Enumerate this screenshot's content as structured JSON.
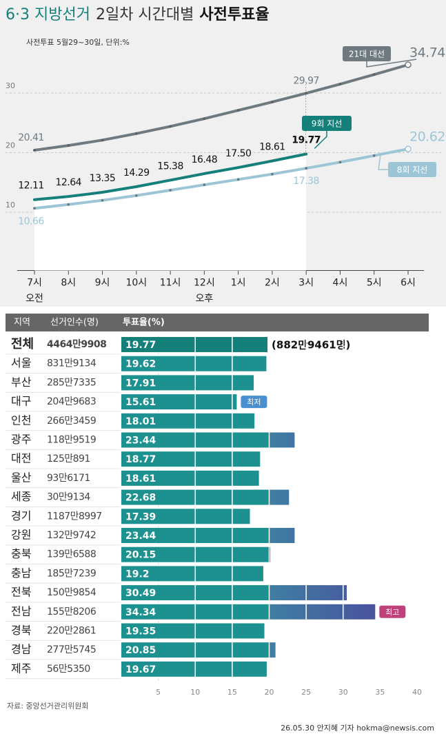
{
  "title": [
    "6·3 지방선거",
    "2일차 시간대별",
    "사전투표율"
  ],
  "subtitle": "사전투표 5월29~30일, 단위:%",
  "source": "자료: 중앙선거관리위원회",
  "byline": "26.05.30 안지혜 기자 hokma@newsis.com",
  "chart_data": [
    {
      "type": "line",
      "categories": [
        "7시",
        "8시",
        "9시",
        "10시",
        "11시",
        "12시",
        "1시",
        "2시",
        "3시",
        "4시",
        "5시",
        "6시"
      ],
      "x_sublabels": [
        "오전",
        null,
        null,
        null,
        null,
        "오후",
        null,
        null,
        null,
        null,
        null,
        null
      ],
      "ylim": [
        0,
        40
      ],
      "yticks": [
        10,
        20,
        30
      ],
      "grid": true,
      "series": [
        {
          "name": "21대 대선",
          "color": "#6e7a80",
          "values": [
            20.41,
            21.2,
            22.1,
            23.2,
            24.4,
            25.7,
            27.1,
            28.5,
            29.97,
            31.5,
            33.1,
            34.74
          ],
          "value_labels": [
            "20.41",
            null,
            null,
            null,
            null,
            null,
            null,
            null,
            "29.97",
            null,
            null,
            "34.74"
          ]
        },
        {
          "name": "9회 지선",
          "color": "#157f7a",
          "fill": "#ffffff",
          "values": [
            12.11,
            12.64,
            13.35,
            14.29,
            15.38,
            16.48,
            17.5,
            18.61,
            19.77,
            null,
            null,
            null
          ],
          "value_labels": [
            "12.11",
            "12.64",
            "13.35",
            "14.29",
            "15.38",
            "16.48",
            "17.50",
            "18.61",
            "19.77",
            null,
            null,
            null
          ]
        },
        {
          "name": "8회 지선",
          "color": "#9cc5d6",
          "values": [
            10.66,
            11.3,
            12.0,
            12.8,
            13.7,
            14.6,
            15.5,
            16.4,
            17.38,
            18.4,
            19.5,
            20.62
          ],
          "value_labels": [
            "10.66",
            null,
            null,
            null,
            null,
            null,
            null,
            null,
            "17.38",
            null,
            null,
            "20.62"
          ]
        }
      ]
    },
    {
      "type": "bar",
      "orientation": "horizontal",
      "columns": [
        "지역",
        "선거인수(명)",
        "투표율(%)"
      ],
      "categories": [
        "전체",
        "서울",
        "부산",
        "대구",
        "인천",
        "광주",
        "대전",
        "울산",
        "세종",
        "경기",
        "강원",
        "충북",
        "충남",
        "전북",
        "전남",
        "경북",
        "경남",
        "제주"
      ],
      "electors": [
        "4464만9908",
        "831만9134",
        "285만7335",
        "204만9683",
        "266만3459",
        "118만9519",
        "125만891",
        "93만6171",
        "30만9134",
        "1187만8997",
        "132만9742",
        "139만6588",
        "185만7239",
        "150만9854",
        "155만8206",
        "220만2861",
        "277만5745",
        "56만5350"
      ],
      "values": [
        19.77,
        19.62,
        17.91,
        15.61,
        18.01,
        23.44,
        18.77,
        18.61,
        22.68,
        17.39,
        23.44,
        20.15,
        19.2,
        30.49,
        34.34,
        19.35,
        20.85,
        19.67
      ],
      "xlim": [
        0,
        40
      ],
      "xticks": [
        5,
        10,
        15,
        20,
        25,
        30,
        35,
        40
      ],
      "color": "#1d9090",
      "color_high": "#4b4c9c",
      "total_note": "(882만9461명)",
      "annotations": [
        {
          "text": "최저",
          "at": "대구",
          "color": "#4a90d0"
        },
        {
          "text": "최고",
          "at": "전남",
          "color": "#c0407a"
        }
      ]
    }
  ]
}
